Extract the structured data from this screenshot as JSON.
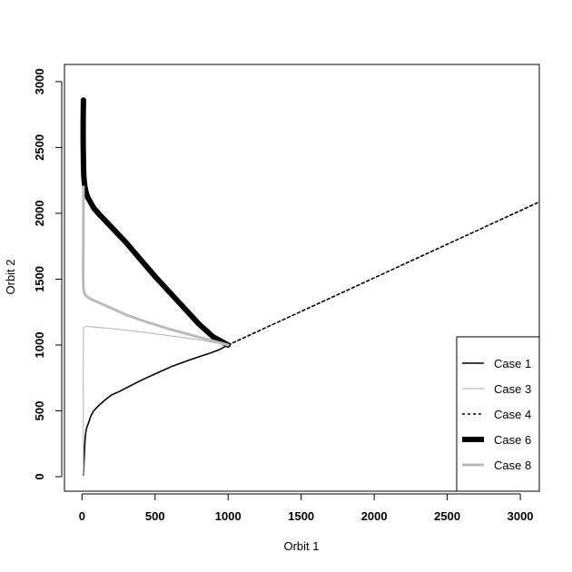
{
  "chart_data": {
    "type": "line",
    "xlabel": "Orbit 1",
    "ylabel": "Orbit 2",
    "xlim": [
      -120,
      3130
    ],
    "ylim": [
      -110,
      3130
    ],
    "xticks": [
      0,
      500,
      1000,
      1500,
      2000,
      2500,
      3000
    ],
    "yticks": [
      0,
      500,
      1000,
      1500,
      2000,
      2500,
      3000
    ],
    "grid": false,
    "legend_position": "bottom-right",
    "series": [
      {
        "name": "Case 1",
        "color": "#000000",
        "dash": "solid",
        "weight": "normal",
        "x": [
          10,
          12,
          14,
          18,
          22,
          28,
          35,
          45,
          60,
          80,
          110,
          150,
          200,
          260,
          330,
          420,
          520,
          620,
          720,
          800,
          880,
          940,
          1000
        ],
        "y": [
          15,
          50,
          120,
          220,
          300,
          350,
          380,
          410,
          460,
          500,
          535,
          575,
          620,
          650,
          690,
          740,
          790,
          840,
          880,
          910,
          940,
          965,
          1000
        ]
      },
      {
        "name": "Case 3",
        "color": "#bbbbbb",
        "dash": "solid",
        "weight": "thin",
        "x": [
          10,
          9,
          9,
          8,
          8,
          9,
          10,
          20,
          50,
          100,
          200,
          300,
          400,
          500,
          600,
          700,
          800,
          900,
          1000
        ],
        "y": [
          20,
          200,
          500,
          700,
          850,
          1000,
          1130,
          1140,
          1140,
          1135,
          1125,
          1112,
          1100,
          1085,
          1070,
          1055,
          1040,
          1020,
          1000
        ]
      },
      {
        "name": "Case 4",
        "color": "#000000",
        "dash": "dashed",
        "weight": "normal",
        "x": [
          1000,
          1500,
          2000,
          2500,
          3000,
          3130
        ],
        "y": [
          1000,
          1255,
          1510,
          1765,
          2020,
          2086
        ]
      },
      {
        "name": "Case 6",
        "color": "#000000",
        "dash": "solid",
        "weight": "thick",
        "x": [
          10,
          8,
          8,
          9,
          10,
          12,
          15,
          20,
          30,
          40,
          60,
          80,
          120,
          180,
          240,
          300,
          400,
          500,
          600,
          700,
          800,
          900,
          1000
        ],
        "y": [
          2860,
          2700,
          2550,
          2450,
          2380,
          2300,
          2250,
          2200,
          2150,
          2120,
          2080,
          2040,
          1990,
          1920,
          1850,
          1780,
          1650,
          1520,
          1400,
          1280,
          1160,
          1060,
          1000
        ]
      },
      {
        "name": "Case 8",
        "color": "#bbbbbb",
        "dash": "solid",
        "weight": "medium",
        "x": [
          10,
          10,
          9,
          9,
          8,
          8,
          10,
          15,
          22,
          30,
          50,
          80,
          120,
          200,
          300,
          400,
          500,
          600,
          700,
          800,
          900,
          1000
        ],
        "y": [
          2200,
          2050,
          1900,
          1750,
          1600,
          1500,
          1430,
          1400,
          1380,
          1370,
          1355,
          1340,
          1320,
          1280,
          1230,
          1190,
          1155,
          1120,
          1090,
          1060,
          1030,
          1000
        ]
      }
    ]
  }
}
